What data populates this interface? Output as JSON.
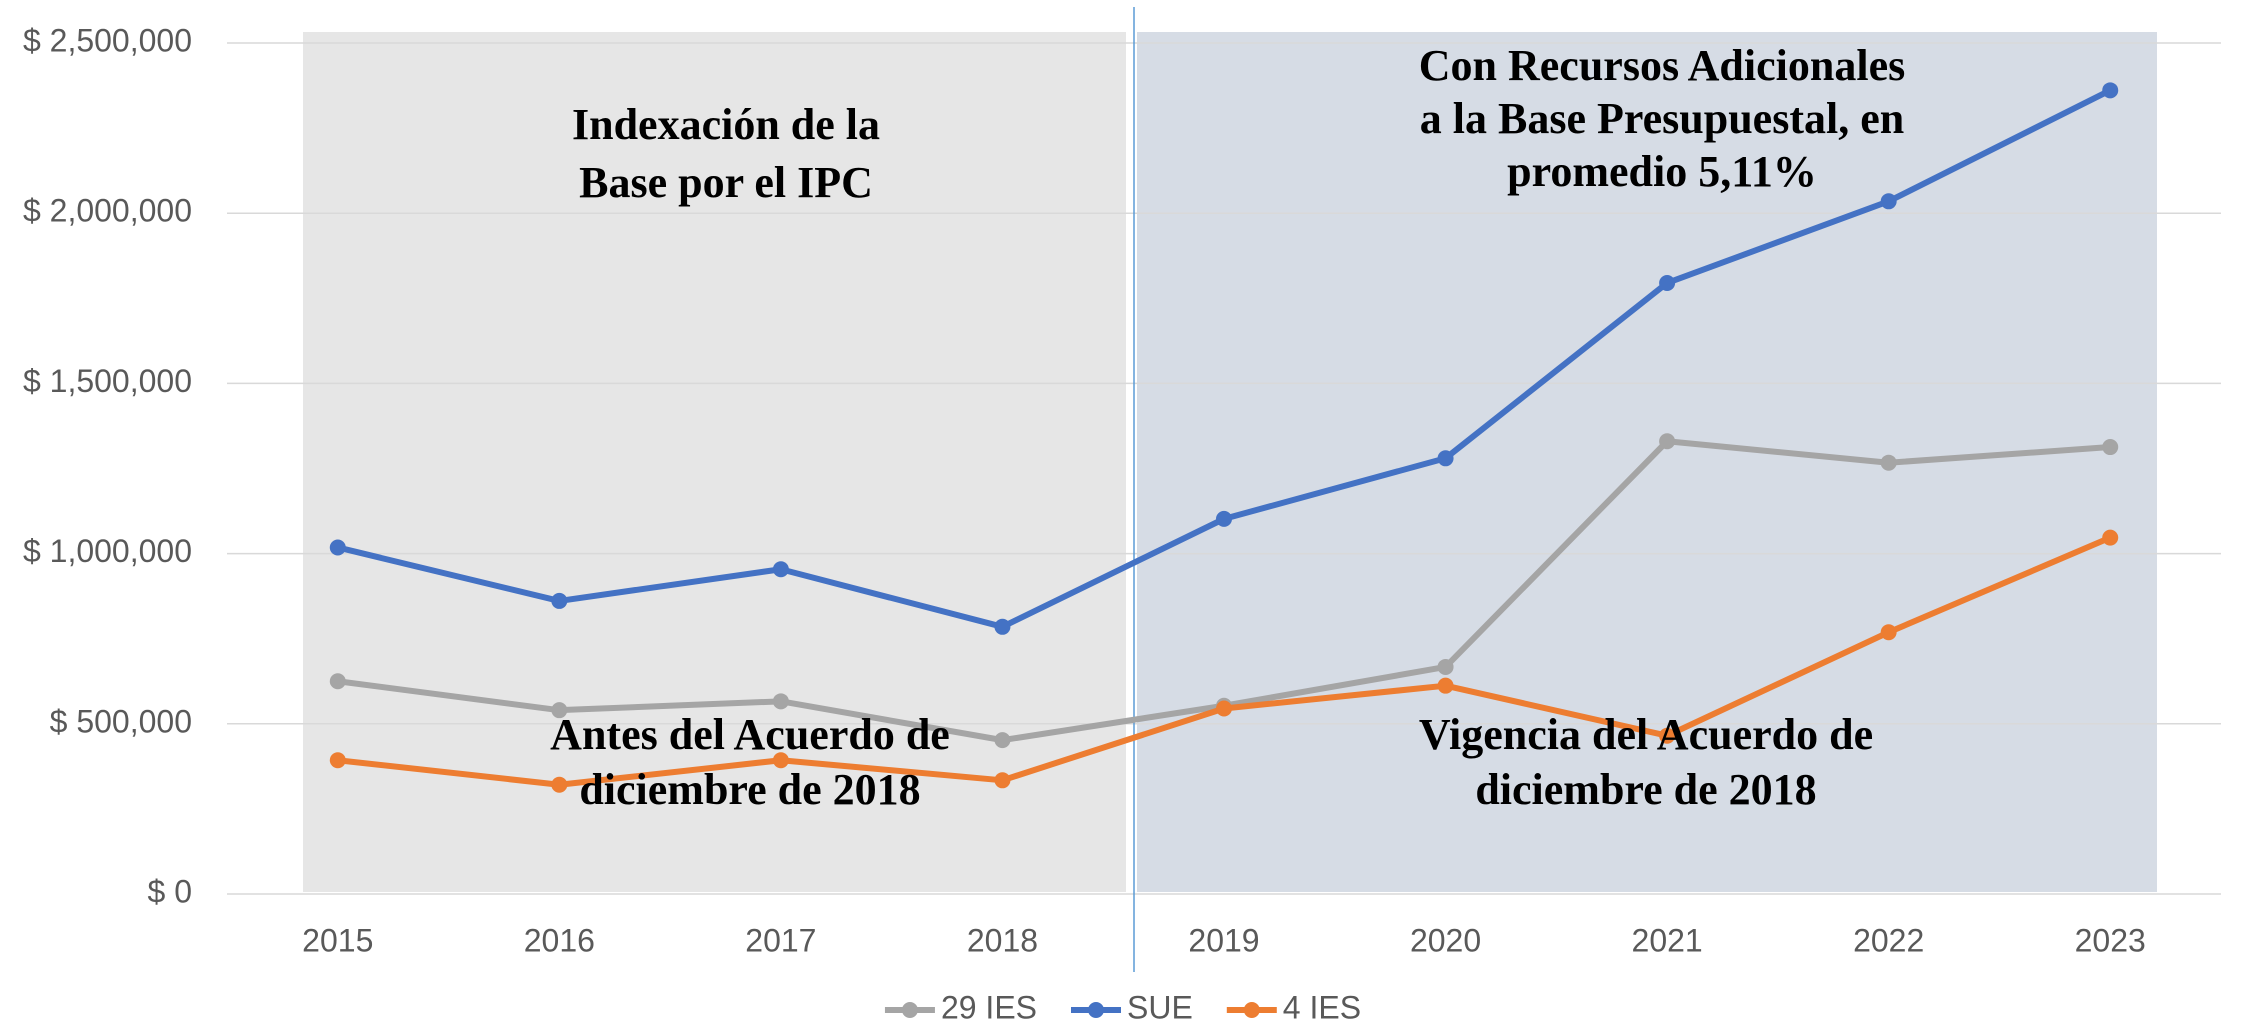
{
  "chart_data": {
    "type": "line",
    "categories": [
      "2015",
      "2016",
      "2017",
      "2018",
      "2019",
      "2020",
      "2021",
      "2022",
      "2023"
    ],
    "series": [
      {
        "name": "29 IES",
        "color": "#a5a5a5",
        "values": [
          625000,
          540000,
          566000,
          452000,
          553000,
          667000,
          1330000,
          1267000,
          1313000
        ]
      },
      {
        "name": "SUE",
        "color": "#4472c4",
        "values": [
          1018000,
          861000,
          954000,
          785000,
          1102000,
          1280000,
          1795000,
          2035000,
          2361000
        ]
      },
      {
        "name": "4 IES",
        "color": "#ed7d31",
        "values": [
          393000,
          321000,
          393000,
          334000,
          545000,
          612000,
          465000,
          769000,
          1047000
        ]
      }
    ],
    "ylim": [
      0,
      2500000
    ],
    "yticks": [
      {
        "value": 0,
        "label": "$ 0"
      },
      {
        "value": 500000,
        "label": "$ 500,000"
      },
      {
        "value": 1000000,
        "label": "$ 1,000,000"
      },
      {
        "value": 1500000,
        "label": "$ 1,500,000"
      },
      {
        "value": 2000000,
        "label": "$ 2,000,000"
      },
      {
        "value": 2500000,
        "label": "$ 2,500,000"
      }
    ],
    "grid": true,
    "legend": "bottom",
    "annotations": [
      {
        "lines": [
          "Indexación de la",
          "Base por el IPC"
        ]
      },
      {
        "lines": [
          "Con Recursos Adicionales",
          "a la Base Presupuestal, en",
          "promedio 5,11%"
        ]
      },
      {
        "lines": [
          "Antes del Acuerdo de",
          "diciembre de 2018"
        ]
      },
      {
        "lines": [
          "Vigencia del Acuerdo de",
          "diciembre de 2018"
        ]
      }
    ]
  }
}
